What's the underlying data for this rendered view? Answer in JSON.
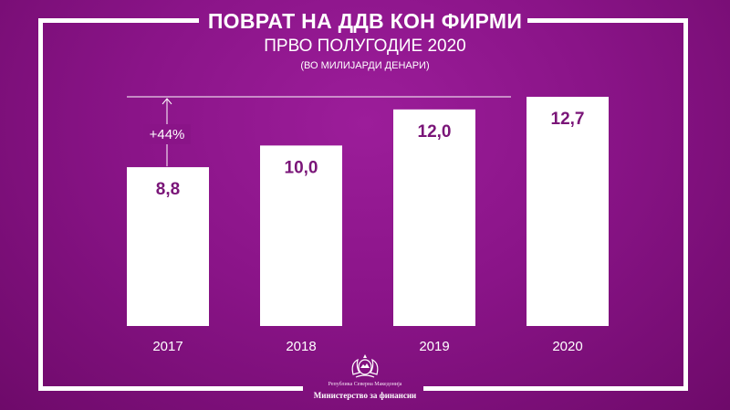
{
  "header": {
    "title": "ПОВРАТ НА ДДВ КОН ФИРМИ",
    "subtitle": "ПРВО ПОЛУГОДИЕ 2020",
    "units": "(ВО МИЛИЈАРДИ ДЕНАРИ)"
  },
  "annotation": {
    "growth_label": "+44%"
  },
  "footer": {
    "emblem_icon": "coat-of-arms-icon",
    "republic": "Република Северна Македонија",
    "ministry": "Министерство за финансии"
  },
  "colors": {
    "background": "#8a1488",
    "bar": "#ffffff",
    "value_text": "#7a1578"
  },
  "chart_data": {
    "type": "bar",
    "title": "ПОВРАТ НА ДДВ КОН ФИРМИ",
    "subtitle": "ПРВО ПОЛУГОДИЕ 2020",
    "xlabel": "",
    "ylabel": "",
    "units": "(ВО МИЛИЈАРДИ ДЕНАРИ)",
    "categories": [
      "2017",
      "2018",
      "2019",
      "2020"
    ],
    "values": [
      8.8,
      10.0,
      12.0,
      12.7
    ],
    "value_labels": [
      "8,8",
      "10,0",
      "12,0",
      "12,7"
    ],
    "ylim": [
      0,
      12.7
    ],
    "grid": false,
    "legend": "none",
    "annotations": [
      {
        "text": "+44%",
        "from_category": "2017",
        "to_value": 12.7
      }
    ]
  }
}
